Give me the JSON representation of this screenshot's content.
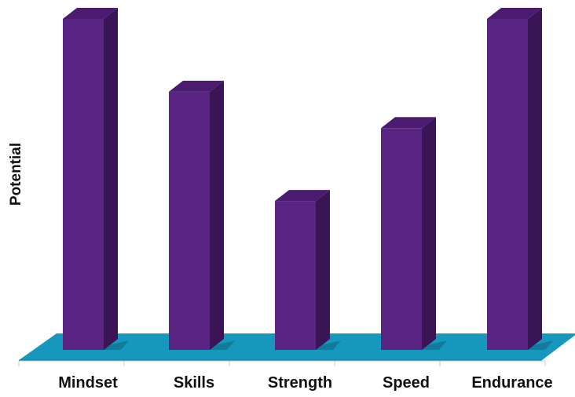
{
  "chart_data": {
    "type": "bar",
    "style": "3d-column",
    "categories": [
      "Mindset",
      "Skills",
      "Strength",
      "Speed",
      "Endurance"
    ],
    "values": [
      100,
      78,
      45,
      67,
      100
    ],
    "ylim": [
      0,
      100
    ],
    "title": "",
    "xlabel": "",
    "ylabel": "Potential",
    "grid": false,
    "legend": "none",
    "colors": {
      "bar_front": "#5a2483",
      "bar_top": "#4a1b6e",
      "bar_side": "#3a1556",
      "floor": "#1697bd",
      "floor_edge": "#0f7fa0",
      "axis": "#c8c8c8"
    }
  }
}
